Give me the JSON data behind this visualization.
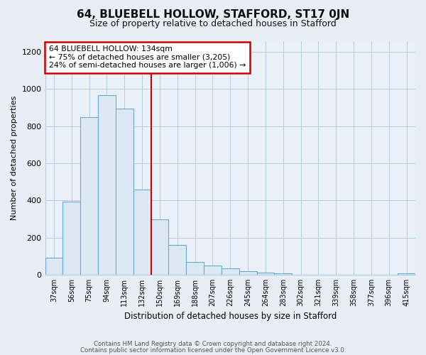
{
  "title": "64, BLUEBELL HOLLOW, STAFFORD, ST17 0JN",
  "subtitle": "Size of property relative to detached houses in Stafford",
  "xlabel": "Distribution of detached houses by size in Stafford",
  "ylabel": "Number of detached properties",
  "bin_labels": [
    "37sqm",
    "56sqm",
    "75sqm",
    "94sqm",
    "113sqm",
    "132sqm",
    "150sqm",
    "169sqm",
    "188sqm",
    "207sqm",
    "226sqm",
    "245sqm",
    "264sqm",
    "283sqm",
    "302sqm",
    "321sqm",
    "339sqm",
    "358sqm",
    "377sqm",
    "396sqm",
    "415sqm"
  ],
  "bar_values": [
    90,
    393,
    848,
    968,
    893,
    460,
    298,
    160,
    70,
    50,
    33,
    18,
    10,
    8,
    0,
    0,
    0,
    0,
    0,
    0,
    8
  ],
  "bar_color": "#dce8f4",
  "bar_edge_color": "#6aaad4",
  "vline_x": 5.5,
  "vline_color": "#cc0000",
  "annotation_text": "64 BLUEBELL HOLLOW: 134sqm\n← 75% of detached houses are smaller (3,205)\n24% of semi-detached houses are larger (1,006) →",
  "annotation_box_color": "#ffffff",
  "annotation_box_edge": "#cc0000",
  "ylim": [
    0,
    1260
  ],
  "yticks": [
    0,
    200,
    400,
    600,
    800,
    1000,
    1200
  ],
  "footer_line1": "Contains HM Land Registry data © Crown copyright and database right 2024.",
  "footer_line2": "Contains public sector information licensed under the Open Government Licence v3.0.",
  "bg_color": "#e8eef5",
  "plot_bg_color": "#eaf0f8",
  "grid_color": "#b8cce0"
}
